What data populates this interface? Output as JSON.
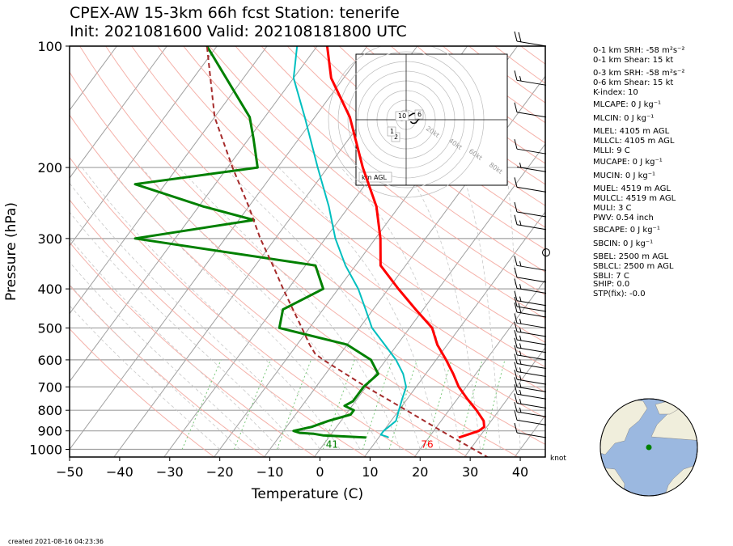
{
  "title": {
    "line1": "CPEX-AW 15-3km  66h fcst  Station: tenerife",
    "line2": "Init: 2021081600  Valid: 202108181800 UTC"
  },
  "indices": [
    "0-1 km SRH: -58 m²s⁻²",
    "0-1 km Shear: 15 kt",
    "0-3 km SRH: -58 m²s⁻²",
    "0-6 km Shear: 15 kt",
    "K-index: 10",
    "MLCAPE: 0 J kg⁻¹",
    "MLCIN: 0 J kg⁻¹",
    "MLEL: 4105 m AGL",
    "MLLCL: 4105 m AGL",
    "MLLI: 9 C",
    "MUCAPE: 0 J kg⁻¹",
    "MUCIN: 0 J kg⁻¹",
    "MUEL: 4519 m AGL",
    "MULCL: 4519 m AGL",
    "MULI: 3 C",
    "PWV: 0.54 inch",
    "SBCAPE: 0 J kg⁻¹",
    "SBCIN: 0 J kg⁻¹",
    "SBEL: 2500 m AGL",
    "SBLCL: 2500 m AGL",
    "SBLI: 7 C",
    "SHIP: 0.0",
    "STP(fix): -0.0"
  ],
  "created": "created 2021-08-16 04:23:36",
  "colors": {
    "temperature": "#ff0000",
    "dewpoint": "#008000",
    "wetbulb": "#00bfbf",
    "parcel": "#a52a2a",
    "isobar": "#a0a0a0",
    "isotherm": "#a0a0a0",
    "dry_adiabat": "#f4a8a0",
    "moist_adiabat": "#c8c8c8",
    "mixing_ratio": "#7cc87c",
    "ocean": "#9bb8e0",
    "land": "#f0eedc"
  },
  "chart_data": {
    "type": "skew-t log-p",
    "xlabel": "Temperature (C)",
    "ylabel": "Pressure (hPa)",
    "xlim": [
      -50,
      45
    ],
    "ylim": [
      1050,
      100
    ],
    "yscale": "log",
    "x_ticks": [
      -50,
      -40,
      -30,
      -20,
      -10,
      0,
      10,
      20,
      30,
      40
    ],
    "y_ticks": [
      100,
      200,
      300,
      400,
      500,
      600,
      700,
      800,
      900,
      1000
    ],
    "grid": true,
    "series": [
      {
        "key": "temperature",
        "points": [
          [
            935,
            26.0
          ],
          [
            915,
            27.7
          ],
          [
            900,
            29.0
          ],
          [
            880,
            29.5
          ],
          [
            850,
            28.5
          ],
          [
            800,
            25.5
          ],
          [
            750,
            22.0
          ],
          [
            700,
            18.5
          ],
          [
            650,
            15.5
          ],
          [
            600,
            12.0
          ],
          [
            550,
            8.0
          ],
          [
            500,
            4.5
          ],
          [
            450,
            -1.5
          ],
          [
            400,
            -8.0
          ],
          [
            350,
            -15.0
          ],
          [
            300,
            -19.0
          ],
          [
            250,
            -24.5
          ],
          [
            200,
            -33.0
          ],
          [
            150,
            -43.0
          ],
          [
            120,
            -52.5
          ],
          [
            100,
            -58.0
          ]
        ]
      },
      {
        "key": "dewpoint",
        "points": [
          [
            935,
            7.5
          ],
          [
            928,
            2.0
          ],
          [
            923,
            -1.5
          ],
          [
            915,
            -3.5
          ],
          [
            910,
            -6.5
          ],
          [
            900,
            -8.0
          ],
          [
            880,
            -5.0
          ],
          [
            850,
            -2.5
          ],
          [
            820,
            1.0
          ],
          [
            800,
            1.0
          ],
          [
            780,
            -1.5
          ],
          [
            760,
            -0.5
          ],
          [
            700,
            -0.5
          ],
          [
            650,
            0.5
          ],
          [
            600,
            -3.0
          ],
          [
            550,
            -10.0
          ],
          [
            500,
            -26.0
          ],
          [
            450,
            -28.0
          ],
          [
            400,
            -23.0
          ],
          [
            350,
            -28.0
          ],
          [
            300,
            -68.0
          ],
          [
            270,
            -47.0
          ],
          [
            250,
            -59.0
          ],
          [
            220,
            -76.0
          ],
          [
            200,
            -54.0
          ],
          [
            170,
            -59.0
          ],
          [
            150,
            -63.0
          ],
          [
            100,
            -82.0
          ]
        ]
      },
      {
        "key": "wetbulb",
        "points": [
          [
            935,
            12.0
          ],
          [
            930,
            11.5
          ],
          [
            920,
            10.0
          ],
          [
            900,
            10.0
          ],
          [
            850,
            11.0
          ],
          [
            800,
            10.0
          ],
          [
            750,
            9.0
          ],
          [
            700,
            8.0
          ],
          [
            650,
            5.5
          ],
          [
            600,
            2.0
          ],
          [
            550,
            -2.5
          ],
          [
            500,
            -7.5
          ],
          [
            450,
            -11.5
          ],
          [
            400,
            -16.0
          ],
          [
            350,
            -22.0
          ],
          [
            300,
            -28.0
          ],
          [
            250,
            -34.0
          ],
          [
            200,
            -42.0
          ],
          [
            150,
            -52.0
          ],
          [
            120,
            -60.0
          ],
          [
            100,
            -64.0
          ]
        ]
      },
      {
        "key": "parcel",
        "points": [
          [
            1050,
            35.0
          ],
          [
            900,
            21.5
          ],
          [
            800,
            11.5
          ],
          [
            700,
            0.0
          ],
          [
            600,
            -12.5
          ],
          [
            580,
            -15.0
          ],
          [
            550,
            -17.5
          ],
          [
            500,
            -21.5
          ],
          [
            450,
            -26.0
          ],
          [
            400,
            -31.0
          ],
          [
            350,
            -36.5
          ],
          [
            300,
            -43.0
          ],
          [
            250,
            -50.0
          ],
          [
            200,
            -59.0
          ],
          [
            150,
            -70.0
          ],
          [
            100,
            -82.0
          ]
        ]
      }
    ],
    "annotations": [
      {
        "text": "41",
        "pressure": 990,
        "temp": 7,
        "key": "dewpoint"
      },
      {
        "text": "76",
        "pressure": 990,
        "temp": 26,
        "key": "temperature"
      }
    ],
    "wind_unit": "knot",
    "wind_barbs": [
      {
        "pressure": 100,
        "speed": 20
      },
      {
        "pressure": 125,
        "speed": 15
      },
      {
        "pressure": 150,
        "speed": 10
      },
      {
        "pressure": 185,
        "speed": 10
      },
      {
        "pressure": 205,
        "speed": 5
      },
      {
        "pressure": 230,
        "speed": 10
      },
      {
        "pressure": 265,
        "speed": 10
      },
      {
        "pressure": 285,
        "speed": 15
      },
      {
        "pressure": 325,
        "speed": 0
      },
      {
        "pressure": 360,
        "speed": 15
      },
      {
        "pressure": 385,
        "speed": 10
      },
      {
        "pressure": 410,
        "speed": 15
      },
      {
        "pressure": 440,
        "speed": 15
      },
      {
        "pressure": 455,
        "speed": 10
      },
      {
        "pressure": 470,
        "speed": 20
      },
      {
        "pressure": 500,
        "speed": 15
      },
      {
        "pressure": 525,
        "speed": 15
      },
      {
        "pressure": 550,
        "speed": 15
      },
      {
        "pressure": 575,
        "speed": 15
      },
      {
        "pressure": 600,
        "speed": 15
      },
      {
        "pressure": 630,
        "speed": 15
      },
      {
        "pressure": 660,
        "speed": 15
      },
      {
        "pressure": 690,
        "speed": 15
      },
      {
        "pressure": 720,
        "speed": 15
      },
      {
        "pressure": 750,
        "speed": 15
      },
      {
        "pressure": 790,
        "speed": 15
      },
      {
        "pressure": 830,
        "speed": 15
      },
      {
        "pressure": 870,
        "speed": 10
      },
      {
        "pressure": 935,
        "speed": 10
      }
    ],
    "hodograph": {
      "unit_label": "km AGL",
      "ring_labels": [
        "20kt",
        "40kt",
        "60kt",
        "80kt"
      ],
      "height_labels": [
        "10",
        "6",
        "2",
        "1"
      ],
      "points": [
        [
          3.5,
          -1.5
        ],
        [
          5.0,
          -2.8
        ],
        [
          6.0,
          -3.0
        ],
        [
          8.0,
          -2.5
        ],
        [
          9.5,
          -0.5
        ],
        [
          11.0,
          1.0
        ],
        [
          11.0,
          5.0
        ],
        [
          9.0,
          5.5
        ],
        [
          5.5,
          5.0
        ],
        [
          3.0,
          3.5
        ],
        [
          0.5,
          2.0
        ],
        [
          -2.0,
          0.0
        ],
        [
          -3.5,
          -0.5
        ],
        [
          -6.0,
          0.0
        ],
        [
          -6.5,
          1.5
        ]
      ]
    }
  }
}
